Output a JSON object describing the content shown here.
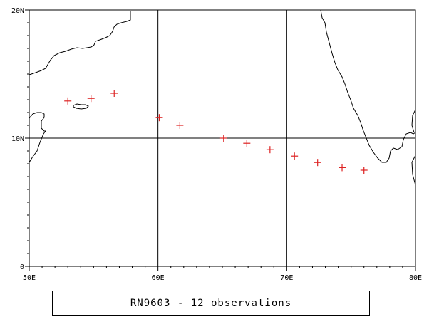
{
  "map": {
    "lon_range": [
      50,
      80
    ],
    "lat_range": [
      0,
      20
    ],
    "grid_lons": [
      60,
      70
    ],
    "grid_lats": [
      10
    ],
    "lon_tick_labels": [
      "50E",
      "60E",
      "70E",
      "80E"
    ],
    "lat_tick_labels": [
      "0",
      "10N",
      "20N"
    ],
    "marker_color": "#dd2222",
    "coast_color": "#000000"
  },
  "chart_data": {
    "type": "scatter",
    "x_unit": "degrees east longitude",
    "y_unit": "degrees north latitude",
    "xlim": [
      50,
      80
    ],
    "ylim": [
      0,
      20
    ],
    "points": [
      {
        "lon": 53.0,
        "lat": 12.9
      },
      {
        "lon": 54.8,
        "lat": 13.1
      },
      {
        "lon": 56.6,
        "lat": 13.5
      },
      {
        "lon": 60.1,
        "lat": 11.6
      },
      {
        "lon": 61.7,
        "lat": 11.0
      },
      {
        "lon": 65.1,
        "lat": 10.0
      },
      {
        "lon": 66.9,
        "lat": 9.6
      },
      {
        "lon": 68.7,
        "lat": 9.1
      },
      {
        "lon": 70.6,
        "lat": 8.6
      },
      {
        "lon": 72.4,
        "lat": 8.1
      },
      {
        "lon": 74.3,
        "lat": 7.7
      },
      {
        "lon": 76.0,
        "lat": 7.5
      }
    ]
  },
  "caption": "RN9603 - 12 observations"
}
